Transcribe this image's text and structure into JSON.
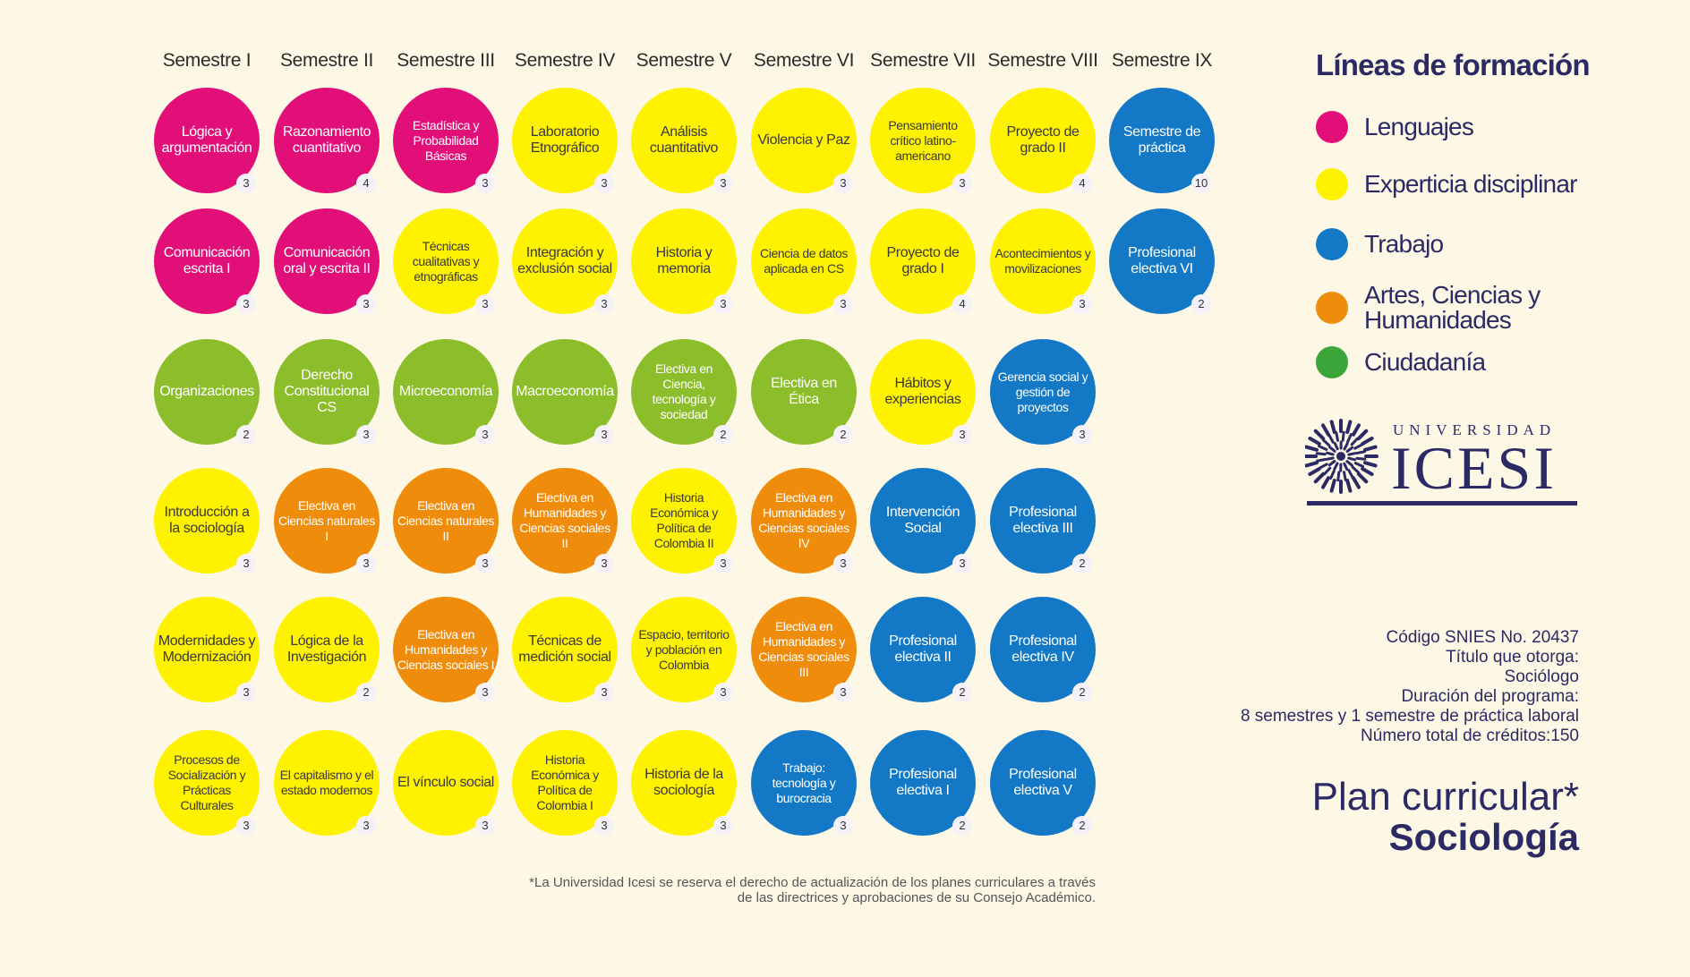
{
  "semesters": [
    "Semestre I",
    "Semestre II",
    "Semestre III",
    "Semestre IV",
    "Semestre V",
    "Semestre VI",
    "Semestre VII",
    "Semestre VIII",
    "Semestre IX"
  ],
  "courses": [
    {
      "name": "Lógica y argumentación",
      "credits": "3",
      "line": "lenguajes"
    },
    {
      "name": "Razonamiento cuantitativo",
      "credits": "4",
      "line": "lenguajes"
    },
    {
      "name": "Estadística y Probabilidad Básicas",
      "credits": "3",
      "line": "lenguajes"
    },
    {
      "name": "Laboratorio Etnográfico",
      "credits": "3",
      "line": "experticia"
    },
    {
      "name": "Análisis cuantitativo",
      "credits": "3",
      "line": "experticia"
    },
    {
      "name": "Violencia y Paz",
      "credits": "3",
      "line": "experticia"
    },
    {
      "name": "Pensamiento crítico latino-americano",
      "credits": "3",
      "line": "experticia"
    },
    {
      "name": "Proyecto de grado II",
      "credits": "4",
      "line": "experticia"
    },
    {
      "name": "Semestre de práctica",
      "credits": "10",
      "line": "trabajo"
    },
    {
      "name": "Comunicación escrita I",
      "credits": "3",
      "line": "lenguajes"
    },
    {
      "name": "Comunicación oral y escrita II",
      "credits": "3",
      "line": "lenguajes"
    },
    {
      "name": "Técnicas cualitativas y etnográficas",
      "credits": "3",
      "line": "experticia"
    },
    {
      "name": "Integración y exclusión social",
      "credits": "3",
      "line": "experticia"
    },
    {
      "name": "Historia y memoria",
      "credits": "3",
      "line": "experticia"
    },
    {
      "name": "Ciencia de datos aplicada en CS",
      "credits": "3",
      "line": "experticia"
    },
    {
      "name": "Proyecto de grado I",
      "credits": "4",
      "line": "experticia"
    },
    {
      "name": "Acontecimientos y movilizaciones",
      "credits": "3",
      "line": "experticia"
    },
    {
      "name": "Profesional electiva VI",
      "credits": "2",
      "line": "trabajo"
    },
    {
      "name": "Organizaciones",
      "credits": "2",
      "line": "ciudadania"
    },
    {
      "name": "Derecho Constitucional CS",
      "credits": "3",
      "line": "ciudadania"
    },
    {
      "name": "Microeconomía",
      "credits": "3",
      "line": "ciudadania"
    },
    {
      "name": "Macroeconomía",
      "credits": "3",
      "line": "ciudadania"
    },
    {
      "name": "Electiva en Ciencia, tecnología y sociedad",
      "credits": "2",
      "line": "ciudadania"
    },
    {
      "name": "Electiva en Ética",
      "credits": "2",
      "line": "ciudadania"
    },
    {
      "name": "Hábitos y experiencias",
      "credits": "3",
      "line": "experticia"
    },
    {
      "name": "Gerencia social y gestión de proyectos",
      "credits": "3",
      "line": "trabajo"
    },
    {
      "name": "Introducción a la sociología",
      "credits": "3",
      "line": "experticia"
    },
    {
      "name": "Electiva en Ciencias naturales I",
      "credits": "3",
      "line": "artes"
    },
    {
      "name": "Electiva en Ciencias naturales II",
      "credits": "3",
      "line": "artes"
    },
    {
      "name": "Electiva en Humanidades y Ciencias sociales II",
      "credits": "3",
      "line": "artes"
    },
    {
      "name": "Historia Económica y Política de Colombia II",
      "credits": "3",
      "line": "experticia"
    },
    {
      "name": "Electiva en Humanidades y Ciencias sociales IV",
      "credits": "3",
      "line": "artes"
    },
    {
      "name": "Intervención Social",
      "credits": "3",
      "line": "trabajo"
    },
    {
      "name": "Profesional electiva III",
      "credits": "2",
      "line": "trabajo"
    },
    {
      "name": "Modernidades y Modernización",
      "credits": "3",
      "line": "experticia"
    },
    {
      "name": "Lógica de la Investigación",
      "credits": "2",
      "line": "experticia"
    },
    {
      "name": "Electiva en Humanidades y Ciencias sociales I",
      "credits": "3",
      "line": "artes"
    },
    {
      "name": "Técnicas de medición social",
      "credits": "3",
      "line": "experticia"
    },
    {
      "name": "Espacio, territorio y población en Colombia",
      "credits": "3",
      "line": "experticia"
    },
    {
      "name": "Electiva en Humanidades y Ciencias sociales III",
      "credits": "3",
      "line": "artes"
    },
    {
      "name": "Profesional electiva II",
      "credits": "2",
      "line": "trabajo"
    },
    {
      "name": "Profesional electiva IV",
      "credits": "2",
      "line": "trabajo"
    },
    {
      "name": "Procesos de Socialización y Prácticas Culturales",
      "credits": "3",
      "line": "experticia"
    },
    {
      "name": "El capitalismo y el estado modernos",
      "credits": "3",
      "line": "experticia"
    },
    {
      "name": "El vínculo social",
      "credits": "3",
      "line": "experticia"
    },
    {
      "name": "Historia Económica y Política de Colombia I",
      "credits": "3",
      "line": "experticia"
    },
    {
      "name": "Historia de la sociología",
      "credits": "3",
      "line": "experticia"
    },
    {
      "name": "Trabajo: tecnología y burocracia",
      "credits": "3",
      "line": "trabajo"
    },
    {
      "name": "Profesional electiva I",
      "credits": "2",
      "line": "trabajo"
    },
    {
      "name": "Profesional electiva V",
      "credits": "2",
      "line": "trabajo"
    }
  ],
  "legend": {
    "title": "Líneas de formación",
    "items": [
      {
        "label": "Lenguajes",
        "color": "#e20f79"
      },
      {
        "label": "Experticia disciplinar",
        "color": "#fff200"
      },
      {
        "label": "Trabajo",
        "color": "#1379c6"
      },
      {
        "label": "Artes, Ciencias y Humanidades",
        "color": "#f08c0b"
      },
      {
        "label": "Ciudadanía",
        "color": "#8cbd2a"
      }
    ]
  },
  "logo": {
    "top": "UNIVERSIDAD",
    "main": "ICESI"
  },
  "info": {
    "snies": "Código SNIES No. 20437",
    "titulo_label": "Título que otorga:",
    "titulo": "Sociólogo",
    "duracion_label": "Duración del programa:",
    "duracion": "8 semestres y 1 semestre de práctica laboral",
    "creditos": "Número total de créditos:150"
  },
  "plan": {
    "line1": "Plan curricular*",
    "line2": "Sociología"
  },
  "footnote": {
    "line1": "*La Universidad Icesi se reserva el derecho de actualización de los planes curriculares a través",
    "line2": "de las directrices y aprobaciones de su Consejo Académico."
  }
}
